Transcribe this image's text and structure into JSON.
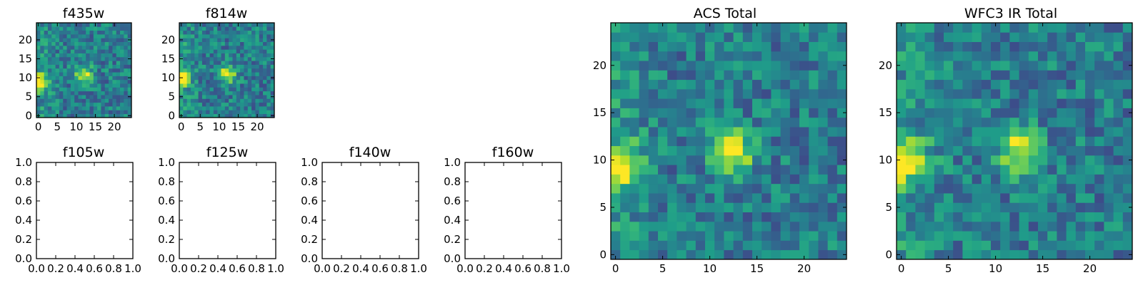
{
  "chart_data": [
    {
      "type": "heatmap",
      "title": "f435w",
      "xlabel": "",
      "ylabel": "",
      "grid_size": 25,
      "xlim": [
        -0.5,
        24.5
      ],
      "ylim": [
        -0.5,
        24.5
      ],
      "xticks": [
        0,
        5,
        10,
        15,
        20
      ],
      "xtick_labels": [
        "0",
        "5",
        "10",
        "15",
        "20"
      ],
      "yticks": [
        0,
        5,
        10,
        15,
        20
      ],
      "ytick_labels": [
        "0",
        "5",
        "10",
        "15",
        "20"
      ],
      "colormap": "viridis",
      "features": [
        {
          "x": 0,
          "y": 9,
          "peak": 1.0
        },
        {
          "x": 12,
          "y": 11,
          "peak": 0.85
        }
      ]
    },
    {
      "type": "heatmap",
      "title": "f814w",
      "xlabel": "",
      "ylabel": "",
      "grid_size": 25,
      "xlim": [
        -0.5,
        24.5
      ],
      "ylim": [
        -0.5,
        24.5
      ],
      "xticks": [
        0,
        5,
        10,
        15,
        20
      ],
      "xtick_labels": [
        "0",
        "5",
        "10",
        "15",
        "20"
      ],
      "yticks": [
        0,
        5,
        10,
        15,
        20
      ],
      "ytick_labels": [
        "0",
        "5",
        "10",
        "15",
        "20"
      ],
      "colormap": "viridis",
      "features": [
        {
          "x": 0,
          "y": 10,
          "peak": 1.0
        },
        {
          "x": 12,
          "y": 11,
          "peak": 0.95
        }
      ]
    },
    {
      "type": "empty",
      "title": "f105w",
      "xlim": [
        0,
        1
      ],
      "ylim": [
        0,
        1
      ],
      "xtick_labels": [
        "0.0",
        "0.2",
        "0.4",
        "0.6",
        "0.8",
        "1.0"
      ],
      "ytick_labels": [
        "0.0",
        "0.2",
        "0.4",
        "0.6",
        "0.8",
        "1.0"
      ]
    },
    {
      "type": "empty",
      "title": "f125w",
      "xlim": [
        0,
        1
      ],
      "ylim": [
        0,
        1
      ],
      "xtick_labels": [
        "0.0",
        "0.2",
        "0.4",
        "0.6",
        "0.8",
        "1.0"
      ],
      "ytick_labels": [
        "0.0",
        "0.2",
        "0.4",
        "0.6",
        "0.8",
        "1.0"
      ]
    },
    {
      "type": "empty",
      "title": "f140w",
      "xlim": [
        0,
        1
      ],
      "ylim": [
        0,
        1
      ],
      "xtick_labels": [
        "0.0",
        "0.2",
        "0.4",
        "0.6",
        "0.8",
        "1.0"
      ],
      "ytick_labels": [
        "0.0",
        "0.2",
        "0.4",
        "0.6",
        "0.8",
        "1.0"
      ]
    },
    {
      "type": "empty",
      "title": "f160w",
      "xlim": [
        0,
        1
      ],
      "ylim": [
        0,
        1
      ],
      "xtick_labels": [
        "0.0",
        "0.2",
        "0.4",
        "0.6",
        "0.8",
        "1.0"
      ],
      "ytick_labels": [
        "0.0",
        "0.2",
        "0.4",
        "0.6",
        "0.8",
        "1.0"
      ]
    },
    {
      "type": "heatmap",
      "title": "ACS Total",
      "xlabel": "",
      "ylabel": "",
      "grid_size": 25,
      "xlim": [
        -0.5,
        24.5
      ],
      "ylim": [
        -0.5,
        24.5
      ],
      "xticks": [
        0,
        5,
        10,
        15,
        20
      ],
      "xtick_labels": [
        "0",
        "5",
        "10",
        "15",
        "20"
      ],
      "yticks": [
        0,
        5,
        10,
        15,
        20
      ],
      "ytick_labels": [
        "0",
        "5",
        "10",
        "15",
        "20"
      ],
      "colormap": "viridis",
      "features": [
        {
          "x": 0.5,
          "y": 9.5,
          "peak": 1.0
        },
        {
          "x": 12.5,
          "y": 11,
          "peak": 0.88
        }
      ]
    },
    {
      "type": "heatmap",
      "title": "WFC3 IR Total",
      "xlabel": "",
      "ylabel": "",
      "grid_size": 25,
      "xlim": [
        -0.5,
        24.5
      ],
      "ylim": [
        -0.5,
        24.5
      ],
      "xticks": [
        0,
        5,
        10,
        15,
        20
      ],
      "xtick_labels": [
        "0",
        "5",
        "10",
        "15",
        "20"
      ],
      "yticks": [
        0,
        5,
        10,
        15,
        20
      ],
      "ytick_labels": [
        "0",
        "5",
        "10",
        "15",
        "20"
      ],
      "colormap": "viridis",
      "features": [
        {
          "x": 0.5,
          "y": 10,
          "peak": 1.0
        },
        {
          "x": 12.5,
          "y": 11,
          "peak": 0.92
        }
      ]
    }
  ]
}
